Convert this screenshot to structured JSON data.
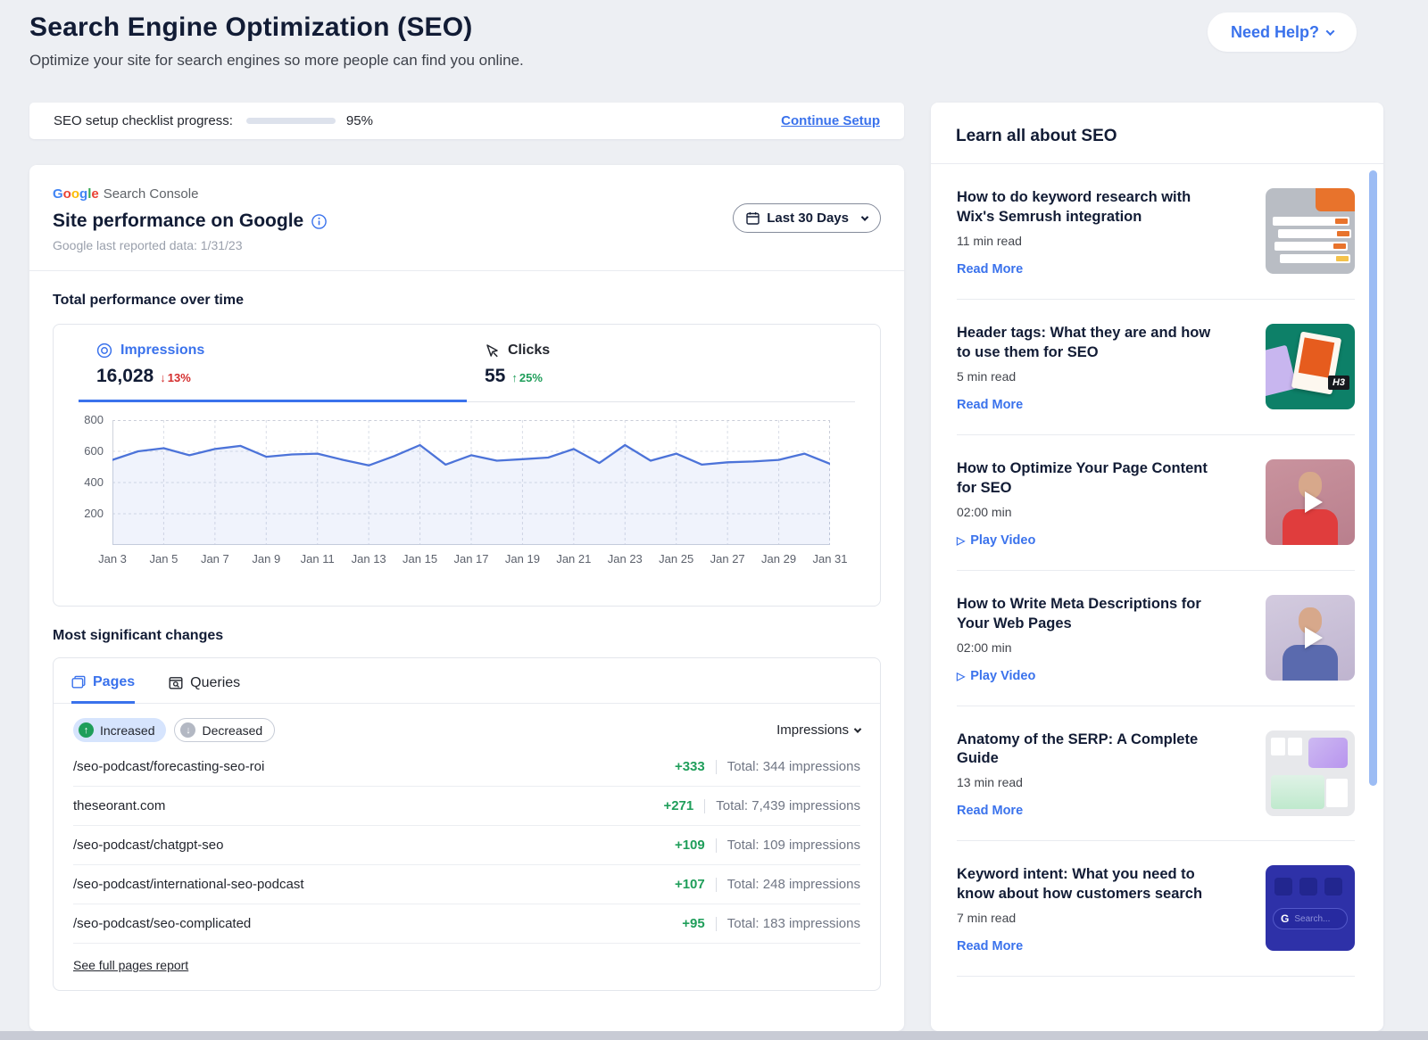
{
  "header": {
    "title": "Search Engine Optimization (SEO)",
    "subtitle": "Optimize your site for search engines so more people can find you online.",
    "help_button": "Need Help?"
  },
  "checklist": {
    "label": "SEO setup checklist progress:",
    "percent_label": "95%",
    "progress_value": 95,
    "continue_link": "Continue Setup"
  },
  "performance": {
    "logo_google": "Google",
    "logo_google_colors": [
      "#4285F4",
      "#EA4335",
      "#FBBC05",
      "#4285F4",
      "#34A853",
      "#EA4335"
    ],
    "logo_suffix": "Search Console",
    "title": "Site performance on Google",
    "last_reported": "Google last reported data: 1/31/23",
    "date_range_button": "Last 30 Days",
    "section_title": "Total performance over time",
    "impressions": {
      "label": "Impressions",
      "value": "16,028",
      "change": "13%"
    },
    "clicks": {
      "label": "Clicks",
      "value": "55",
      "change": "25%"
    }
  },
  "chart_data": {
    "type": "area",
    "title": "Total performance over time",
    "series": [
      {
        "name": "Impressions",
        "values": [
          545,
          600,
          620,
          575,
          615,
          635,
          565,
          580,
          585,
          545,
          510,
          570,
          640,
          515,
          575,
          540,
          550,
          560,
          615,
          525,
          640,
          540,
          585,
          515,
          530,
          535,
          545,
          585,
          520
        ]
      }
    ],
    "x_start": "Jan 3",
    "x_end": "Jan 31",
    "x_tick_labels": [
      "Jan 3",
      "Jan 5",
      "Jan 7",
      "Jan 9",
      "Jan 11",
      "Jan 13",
      "Jan 15",
      "Jan 17",
      "Jan 19",
      "Jan 21",
      "Jan 23",
      "Jan 25",
      "Jan 27",
      "Jan 29",
      "Jan 31"
    ],
    "y_ticks": [
      800,
      600,
      400,
      200
    ],
    "ylim": [
      0,
      800
    ],
    "grid": true,
    "line_color": "#4c73d9",
    "fill_color": "rgba(90,127,224,0.09)"
  },
  "changes": {
    "section_title": "Most significant changes",
    "tabs": [
      {
        "label": "Pages"
      },
      {
        "label": "Queries"
      }
    ],
    "filters": {
      "increased": "Increased",
      "decreased": "Decreased"
    },
    "sort_dropdown": "Impressions",
    "rows": [
      {
        "path": "/seo-podcast/forecasting-seo-roi",
        "change": "+333",
        "total": "Total: 344 impressions"
      },
      {
        "path": "theseorant.com",
        "change": "+271",
        "total": "Total: 7,439 impressions"
      },
      {
        "path": "/seo-podcast/chatgpt-seo",
        "change": "+109",
        "total": "Total: 109 impressions"
      },
      {
        "path": "/seo-podcast/international-seo-podcast",
        "change": "+107",
        "total": "Total: 248 impressions"
      },
      {
        "path": "/seo-podcast/seo-complicated",
        "change": "+95",
        "total": "Total: 183 impressions"
      }
    ],
    "footer_link": "See full pages report"
  },
  "sidebar": {
    "title": "Learn all about SEO",
    "articles": [
      {
        "title": "How to do keyword research with Wix's Semrush integration",
        "meta": "11 min read",
        "action": "Read More",
        "type": "read"
      },
      {
        "title": "Header tags: What they are and how to use them for SEO",
        "meta": "5 min read",
        "action": "Read More",
        "type": "read",
        "thumb_tag": "H3"
      },
      {
        "title": "How to Optimize Your Page Content for SEO",
        "meta": "02:00 min",
        "action": "Play Video",
        "type": "video"
      },
      {
        "title": "How to Write Meta Descriptions for Your Web Pages",
        "meta": "02:00 min",
        "action": "Play Video",
        "type": "video"
      },
      {
        "title": "Anatomy of the SERP: A Complete Guide",
        "meta": "13 min read",
        "action": "Read More",
        "type": "read"
      },
      {
        "title": "Keyword intent: What you need to know about how customers search",
        "meta": "7 min read",
        "action": "Read More",
        "type": "read",
        "thumb_g": "G",
        "thumb_search": "Search..."
      }
    ]
  },
  "colors": {
    "accent": "#3a72ec",
    "green": "#1f9e5a",
    "red": "#d42d2d",
    "progress": "#3a72ec"
  }
}
